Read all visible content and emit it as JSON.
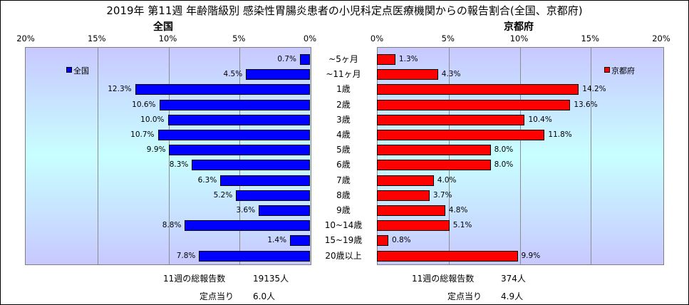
{
  "title": "2019年 第11週 年齢階級別 感染性胃腸炎患者の小児科定点医療機関からの報告割合(全国、京都府)",
  "chart_data": {
    "type": "bar",
    "orientation": "horizontal",
    "categories": [
      "~5ヶ月",
      "~11ヶ月",
      "1歳",
      "2歳",
      "3歳",
      "4歳",
      "5歳",
      "6歳",
      "7歳",
      "8歳",
      "9歳",
      "10~14歳",
      "15~19歳",
      "20歳以上"
    ],
    "left": {
      "title": "全国",
      "xlim": [
        0,
        20
      ],
      "ticks": [
        "20%",
        "15%",
        "10%",
        "5%",
        "0%"
      ],
      "legend": "全国",
      "legend_position": "top-left",
      "color": "#0000ff",
      "values": [
        0.7,
        4.5,
        12.3,
        10.6,
        10.0,
        10.7,
        9.9,
        8.3,
        6.3,
        5.2,
        3.6,
        8.8,
        1.4,
        7.8
      ],
      "labels": [
        "0.7%",
        "4.5%",
        "12.3%",
        "10.6%",
        "10.0%",
        "10.7%",
        "9.9%",
        "8.3%",
        "6.3%",
        "5.2%",
        "3.6%",
        "8.8%",
        "1.4%",
        "7.8%"
      ]
    },
    "right": {
      "title": "京都府",
      "xlim": [
        0,
        20
      ],
      "ticks": [
        "0%",
        "5%",
        "10%",
        "15%",
        "20%"
      ],
      "legend": "京都府",
      "legend_position": "top-right",
      "color": "#ff0000",
      "values": [
        1.3,
        4.3,
        14.2,
        13.6,
        10.4,
        11.8,
        8.0,
        8.0,
        4.0,
        3.7,
        4.8,
        5.1,
        0.8,
        9.9
      ],
      "labels": [
        "1.3%",
        "4.3%",
        "14.2%",
        "13.6%",
        "10.4%",
        "11.8%",
        "8.0%",
        "8.0%",
        "4.0%",
        "3.7%",
        "4.8%",
        "5.1%",
        "0.8%",
        "9.9%"
      ]
    },
    "grid": true,
    "background": [
      "#c8c8ff",
      "#c8ffff"
    ]
  },
  "footer": {
    "left": {
      "total_label": "11週の総報告数",
      "total_value": "19135人",
      "per_label": "定点当り",
      "per_value": "6.0人"
    },
    "right": {
      "total_label": "11週の総報告数",
      "total_value": "374人",
      "per_label": "定点当り",
      "per_value": "4.9人"
    }
  }
}
